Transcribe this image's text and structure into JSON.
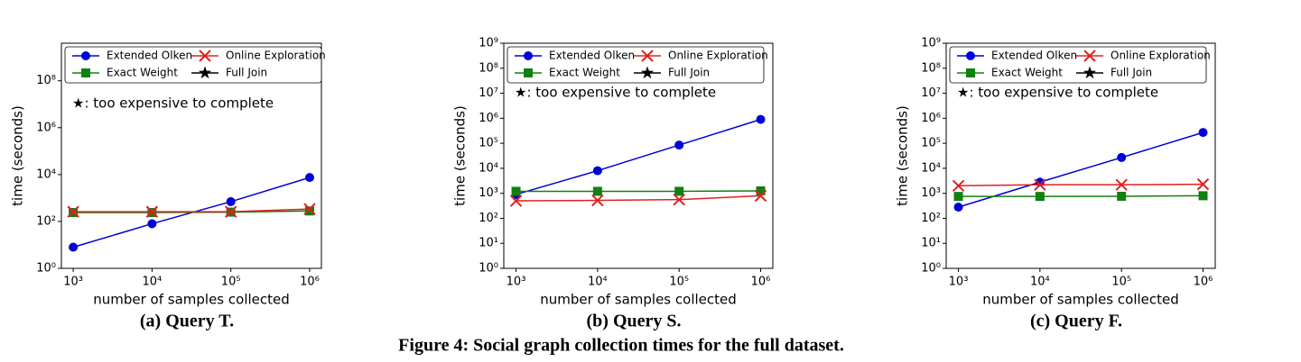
{
  "chart_data": [
    {
      "type": "line",
      "caption": "(a) Query T.",
      "xlabel": "number of samples collected",
      "ylabel": "time (seconds)",
      "annotation": "★: too expensive to complete",
      "xscale": "log",
      "yscale": "log",
      "x": [
        1000,
        10000,
        100000,
        1000000
      ],
      "xlim": [
        708,
        1410000
      ],
      "ylim": [
        1,
        4000000000
      ],
      "xticks": [
        {
          "value": 1000,
          "label": "10³"
        },
        {
          "value": 10000,
          "label": "10⁴"
        },
        {
          "value": 100000,
          "label": "10⁵"
        },
        {
          "value": 1000000,
          "label": "10⁶"
        }
      ],
      "yticks": [
        {
          "value": 1,
          "label": "10⁰"
        },
        {
          "value": 100,
          "label": "10²"
        },
        {
          "value": 10000,
          "label": "10⁴"
        },
        {
          "value": 1000000,
          "label": "10⁶"
        },
        {
          "value": 100000000,
          "label": "10⁸"
        }
      ],
      "series": [
        {
          "name": "Extended Olken",
          "color": "#0000d8",
          "marker": "o",
          "values": [
            8,
            80,
            700,
            7500
          ]
        },
        {
          "name": "Exact Weight",
          "color": "#108010",
          "marker": "s",
          "values": [
            240,
            240,
            250,
            280
          ]
        },
        {
          "name": "Online Exploration",
          "color": "#e02020",
          "marker": "x",
          "values": [
            260,
            260,
            260,
            340
          ]
        },
        {
          "name": "Full Join",
          "color": "#000000",
          "marker": "*",
          "values": [
            null,
            null,
            null,
            null
          ]
        }
      ]
    },
    {
      "type": "line",
      "caption": "(b) Query S.",
      "xlabel": "number of samples collected",
      "ylabel": "time (seconds)",
      "annotation": "★: too expensive to complete",
      "xscale": "log",
      "yscale": "log",
      "x": [
        1000,
        10000,
        100000,
        1000000
      ],
      "xlim": [
        708,
        1410000
      ],
      "ylim": [
        1,
        1000000000
      ],
      "xticks": [
        {
          "value": 1000,
          "label": "10³"
        },
        {
          "value": 10000,
          "label": "10⁴"
        },
        {
          "value": 100000,
          "label": "10⁵"
        },
        {
          "value": 1000000,
          "label": "10⁶"
        }
      ],
      "yticks": [
        {
          "value": 1,
          "label": "10⁰"
        },
        {
          "value": 10,
          "label": "10¹"
        },
        {
          "value": 100,
          "label": "10²"
        },
        {
          "value": 1000,
          "label": "10³"
        },
        {
          "value": 10000,
          "label": "10⁴"
        },
        {
          "value": 100000,
          "label": "10⁵"
        },
        {
          "value": 1000000,
          "label": "10⁶"
        },
        {
          "value": 10000000,
          "label": "10⁷"
        },
        {
          "value": 100000000,
          "label": "10⁸"
        },
        {
          "value": 1000000000,
          "label": "10⁹"
        }
      ],
      "series": [
        {
          "name": "Extended Olken",
          "color": "#0000d8",
          "marker": "o",
          "values": [
            900,
            8000,
            85000,
            900000
          ]
        },
        {
          "name": "Exact Weight",
          "color": "#108010",
          "marker": "s",
          "values": [
            1200,
            1200,
            1200,
            1250
          ]
        },
        {
          "name": "Online Exploration",
          "color": "#e02020",
          "marker": "x",
          "values": [
            500,
            520,
            560,
            800
          ]
        },
        {
          "name": "Full Join",
          "color": "#000000",
          "marker": "*",
          "values": [
            null,
            null,
            null,
            null
          ]
        }
      ]
    },
    {
      "type": "line",
      "caption": "(c) Query F.",
      "xlabel": "number of samples collected",
      "ylabel": "time (seconds)",
      "annotation": "★: too expensive to complete",
      "xscale": "log",
      "yscale": "log",
      "x": [
        1000,
        10000,
        100000,
        1000000
      ],
      "xlim": [
        708,
        1410000
      ],
      "ylim": [
        1,
        1000000000
      ],
      "xticks": [
        {
          "value": 1000,
          "label": "10³"
        },
        {
          "value": 10000,
          "label": "10⁴"
        },
        {
          "value": 100000,
          "label": "10⁵"
        },
        {
          "value": 1000000,
          "label": "10⁶"
        }
      ],
      "yticks": [
        {
          "value": 1,
          "label": "10⁰"
        },
        {
          "value": 10,
          "label": "10¹"
        },
        {
          "value": 100,
          "label": "10²"
        },
        {
          "value": 1000,
          "label": "10³"
        },
        {
          "value": 10000,
          "label": "10⁴"
        },
        {
          "value": 100000,
          "label": "10⁵"
        },
        {
          "value": 1000000,
          "label": "10⁶"
        },
        {
          "value": 10000000,
          "label": "10⁷"
        },
        {
          "value": 100000000,
          "label": "10⁸"
        },
        {
          "value": 1000000000,
          "label": "10⁹"
        }
      ],
      "series": [
        {
          "name": "Extended Olken",
          "color": "#0000d8",
          "marker": "o",
          "values": [
            280,
            2800,
            27000,
            270000
          ]
        },
        {
          "name": "Exact Weight",
          "color": "#108010",
          "marker": "s",
          "values": [
            750,
            750,
            760,
            800
          ]
        },
        {
          "name": "Online Exploration",
          "color": "#e02020",
          "marker": "x",
          "values": [
            2000,
            2200,
            2200,
            2300
          ]
        },
        {
          "name": "Full Join",
          "color": "#000000",
          "marker": "*",
          "values": [
            null,
            null,
            null,
            null
          ]
        }
      ]
    }
  ],
  "figure_caption": "Figure 4: Social graph collection times for the full dataset."
}
